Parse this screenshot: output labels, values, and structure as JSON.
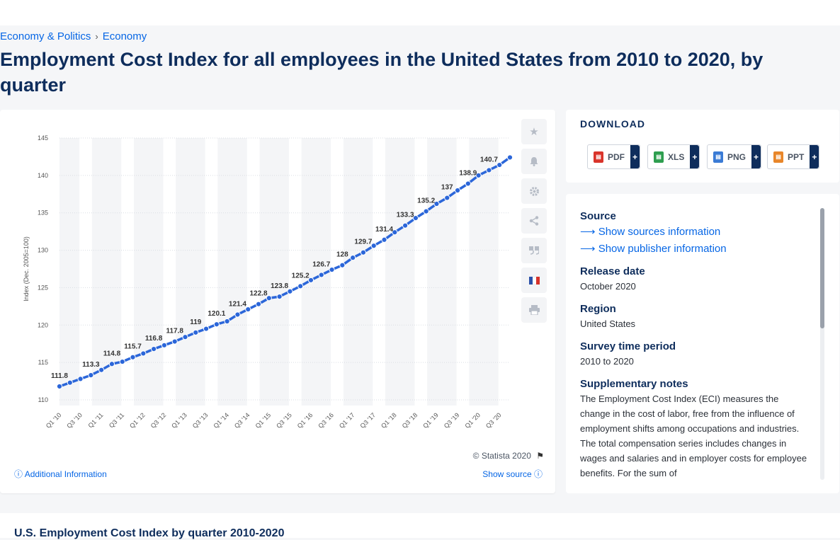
{
  "breadcrumb": {
    "items": [
      "Economy & Politics",
      "Economy"
    ],
    "separator": "›"
  },
  "page_title": "Employment Cost Index for all employees in the United States from 2010 to 2020, by quarter",
  "chart_data": {
    "type": "line",
    "title": "",
    "xlabel": "",
    "ylabel": "Index (Dec. 2005=100)",
    "ylim": [
      110,
      145
    ],
    "yticks": [
      110,
      115,
      120,
      125,
      130,
      135,
      140,
      145
    ],
    "grid": true,
    "categories": [
      "Q1 '10",
      "Q2 '10",
      "Q3 '10",
      "Q4 '10",
      "Q1 '11",
      "Q2 '11",
      "Q3 '11",
      "Q4 '11",
      "Q1 '12",
      "Q2 '12",
      "Q3 '12",
      "Q4 '12",
      "Q1 '13",
      "Q2 '13",
      "Q3 '13",
      "Q4 '13",
      "Q1 '14",
      "Q2 '14",
      "Q3 '14",
      "Q4 '14",
      "Q1 '15",
      "Q2 '15",
      "Q3 '15",
      "Q4 '15",
      "Q1 '16",
      "Q2 '16",
      "Q3 '16",
      "Q4 '16",
      "Q1 '17",
      "Q2 '17",
      "Q3 '17",
      "Q4 '17",
      "Q1 '18",
      "Q2 '18",
      "Q3 '18",
      "Q4 '18",
      "Q1 '19",
      "Q2 '19",
      "Q3 '19",
      "Q4 '19",
      "Q1 '20",
      "Q2 '20",
      "Q3 '20",
      "Q4 '20"
    ],
    "visible_tick_labels": [
      "Q1 '10",
      "Q3 '10",
      "Q1 '11",
      "Q3 '11",
      "Q1 '12",
      "Q3 '12",
      "Q1 '13",
      "Q3 '13",
      "Q1 '14",
      "Q3 '14",
      "Q1 '15",
      "Q3 '15",
      "Q1 '16",
      "Q3 '16",
      "Q1 '17",
      "Q3 '17",
      "Q1 '18",
      "Q3 '18",
      "Q1 '19",
      "Q3 '19",
      "Q1 '20",
      "Q3 '20"
    ],
    "series": [
      {
        "values": [
          111.8,
          112.3,
          112.8,
          113.3,
          114.0,
          114.8,
          115.1,
          115.7,
          116.2,
          116.8,
          117.3,
          117.8,
          118.4,
          119.0,
          119.5,
          120.1,
          120.5,
          121.4,
          122.1,
          122.8,
          123.6,
          123.8,
          124.5,
          125.2,
          126.0,
          126.7,
          127.4,
          128.0,
          129.0,
          129.7,
          130.6,
          131.4,
          132.4,
          133.3,
          134.3,
          135.2,
          136.2,
          137.0,
          138.0,
          138.9,
          140.0,
          140.7,
          141.4,
          142.4
        ],
        "color": "#2b66d9"
      }
    ],
    "data_labels": [
      {
        "index": 0,
        "text": "111.8"
      },
      {
        "index": 3,
        "text": "113.3"
      },
      {
        "index": 5,
        "text": "114.8"
      },
      {
        "index": 7,
        "text": "115.7"
      },
      {
        "index": 9,
        "text": "116.8"
      },
      {
        "index": 11,
        "text": "117.8"
      },
      {
        "index": 13,
        "text": "119"
      },
      {
        "index": 15,
        "text": "120.1"
      },
      {
        "index": 17,
        "text": "121.4"
      },
      {
        "index": 19,
        "text": "122.8"
      },
      {
        "index": 21,
        "text": "123.8"
      },
      {
        "index": 23,
        "text": "125.2"
      },
      {
        "index": 25,
        "text": "126.7"
      },
      {
        "index": 27,
        "text": "128"
      },
      {
        "index": 29,
        "text": "129.7"
      },
      {
        "index": 31,
        "text": "131.4"
      },
      {
        "index": 33,
        "text": "133.3"
      },
      {
        "index": 35,
        "text": "135.2"
      },
      {
        "index": 37,
        "text": "137"
      },
      {
        "index": 39,
        "text": "138.9"
      },
      {
        "index": 41,
        "text": "140.7"
      }
    ],
    "colors": {
      "line": "#2b66d9",
      "band": "#f4f5f7",
      "grid": "#d9dde3"
    }
  },
  "chart_card": {
    "credit": "© Statista 2020",
    "additional_info": "Additional Information",
    "show_source": "Show source",
    "tools": [
      "star-icon",
      "bell-icon",
      "gear-icon",
      "share-icon",
      "quote-icon",
      "flag-fr-icon",
      "print-icon"
    ]
  },
  "download": {
    "title": "DOWNLOAD",
    "buttons": [
      {
        "label": "PDF",
        "color": "#d9342b"
      },
      {
        "label": "XLS",
        "color": "#2e9e4f"
      },
      {
        "label": "PNG",
        "color": "#3a7bd5"
      },
      {
        "label": "PPT",
        "color": "#e8862a"
      }
    ],
    "plus": "+"
  },
  "info": {
    "source_heading": "Source",
    "show_sources": "Show sources information",
    "show_publisher": "Show publisher information",
    "release_heading": "Release date",
    "release_value": "October 2020",
    "region_heading": "Region",
    "region_value": "United States",
    "survey_heading": "Survey time period",
    "survey_value": "2010 to 2020",
    "notes_heading": "Supplementary notes",
    "notes_value": "The Employment Cost Index (ECI) measures the change in the cost of labor, free from the influence of employment shifts among occupations and industries. The total compensation series includes changes in wages and salaries and in employer costs for employee benefits. For the sum of"
  },
  "related": {
    "title": "U.S. Employment Cost Index by quarter 2010-2020"
  }
}
